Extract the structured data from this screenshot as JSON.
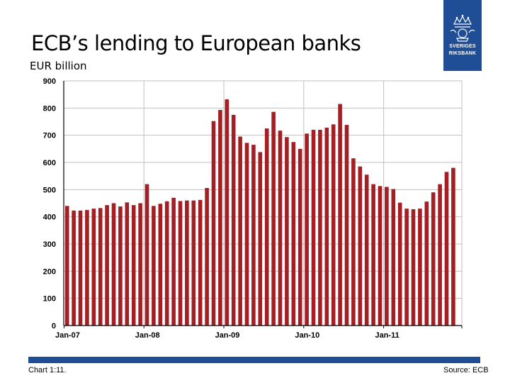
{
  "header": {
    "title": "ECB’s lending to European banks",
    "unit": "EUR billion"
  },
  "logo": {
    "line1": "SVERIGES",
    "line2": "RIKSBANK"
  },
  "footer": {
    "chart_number": "Chart 1:11.",
    "source": "Source: ECB"
  },
  "colors": {
    "bar": "#a41f24",
    "grid": "#c0c0c0",
    "brand": "#1f4e96"
  },
  "chart_data": {
    "type": "bar",
    "title": "ECB’s lending to European banks",
    "ylabel": "EUR billion",
    "ylim": [
      0,
      900
    ],
    "yticks": [
      0,
      100,
      200,
      300,
      400,
      500,
      600,
      700,
      800,
      900
    ],
    "x_tick_labels": [
      "Jan-07",
      "Jan-08",
      "Jan-09",
      "Jan-10",
      "Jan-11"
    ],
    "x_tick_indices": [
      0,
      12,
      24,
      36,
      48
    ],
    "grid": true,
    "values": [
      440,
      423,
      423,
      425,
      430,
      432,
      443,
      450,
      438,
      453,
      443,
      450,
      520,
      440,
      448,
      457,
      470,
      458,
      460,
      460,
      462,
      506,
      752,
      793,
      832,
      775,
      695,
      672,
      665,
      638,
      725,
      786,
      717,
      693,
      675,
      650,
      706,
      720,
      720,
      728,
      740,
      815,
      738,
      615,
      585,
      555,
      520,
      513,
      510,
      502,
      452,
      430,
      428,
      430,
      456,
      490,
      520,
      565,
      580
    ]
  }
}
